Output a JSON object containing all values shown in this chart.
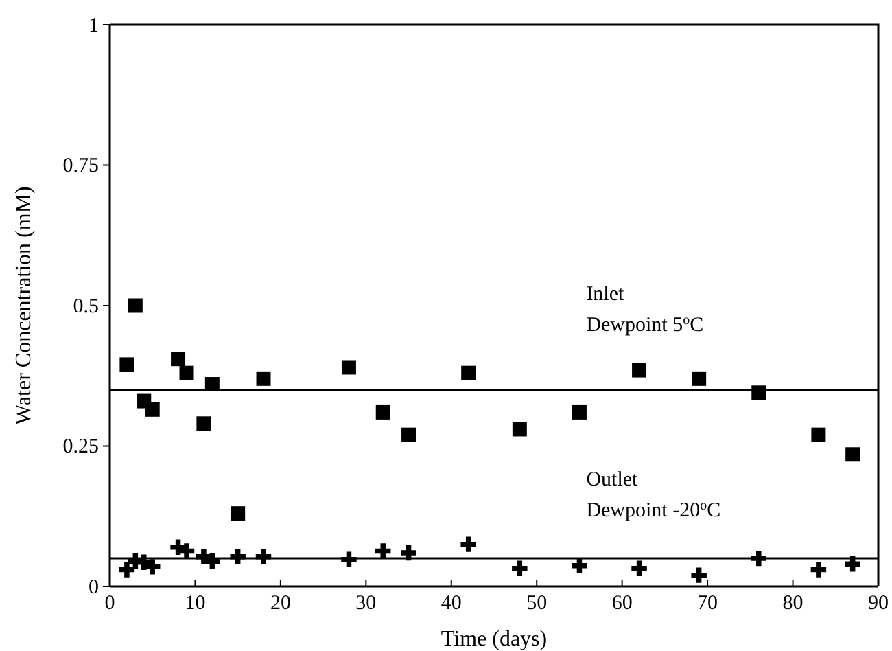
{
  "chart_data": {
    "type": "scatter",
    "xlabel": "Time (days)",
    "ylabel": "Water Concentration (mM)",
    "xlim": [
      0,
      90
    ],
    "xticks": [
      0,
      10,
      20,
      30,
      40,
      50,
      60,
      70,
      80,
      90
    ],
    "ylim": [
      0,
      1
    ],
    "yticks": [
      0,
      0.25,
      0.5,
      0.75,
      1
    ],
    "grid": false,
    "series": [
      {
        "color": "#000000",
        "marker": "square",
        "x": [
          2,
          3,
          4,
          5,
          8,
          9,
          11,
          12,
          15,
          18,
          28,
          32,
          35,
          42,
          48,
          55,
          62,
          69,
          76,
          83,
          87
        ],
        "values": [
          0.395,
          0.5,
          0.33,
          0.315,
          0.405,
          0.38,
          0.29,
          0.36,
          0.13,
          0.37,
          0.39,
          0.31,
          0.27,
          0.38,
          0.28,
          0.31,
          0.385,
          0.37,
          0.345,
          0.27,
          0.235
        ]
      },
      {
        "color": "#000000",
        "marker": "cross",
        "x": [
          2,
          3,
          4,
          5,
          8,
          9,
          11,
          12,
          15,
          18,
          28,
          32,
          35,
          42,
          48,
          55,
          62,
          69,
          76,
          83,
          87
        ],
        "values": [
          0.03,
          0.045,
          0.043,
          0.035,
          0.07,
          0.063,
          0.053,
          0.045,
          0.053,
          0.053,
          0.048,
          0.063,
          0.06,
          0.075,
          0.032,
          0.037,
          0.032,
          0.02,
          0.05,
          0.03,
          0.04
        ]
      }
    ],
    "ref_lines": [
      {
        "axis": "y",
        "value": 0.35,
        "color": "#000000"
      },
      {
        "axis": "y",
        "value": 0.05,
        "color": "#000000"
      }
    ],
    "annotations": [
      "Inlet",
      "Dewpoint 5$^{o}$C",
      "Outlet",
      "Dewpoint -20$^{o}$C"
    ]
  }
}
